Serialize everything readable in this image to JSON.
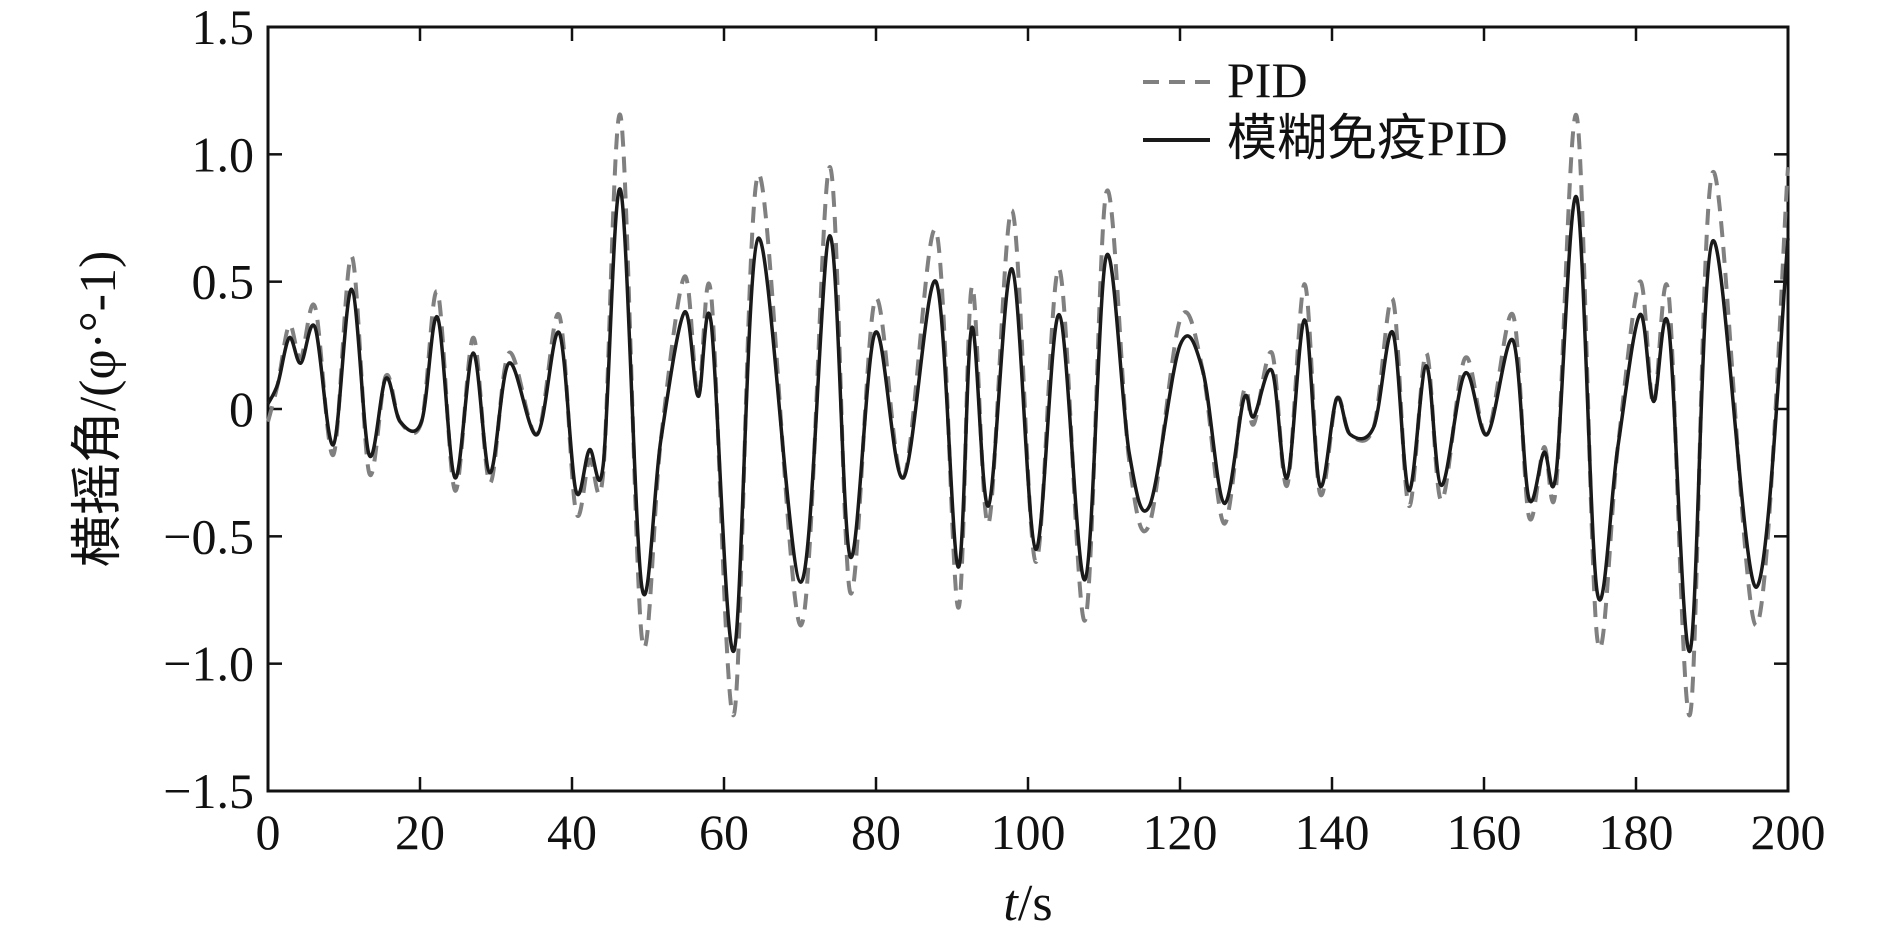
{
  "chart_data": {
    "type": "line",
    "xlabel_italic": "t",
    "xlabel_unit": "/s",
    "ylabel": "横摇角/(φ·°-1)",
    "xlim": [
      0,
      200
    ],
    "ylim": [
      -1.5,
      1.5
    ],
    "xticks": [
      "0",
      "20",
      "40",
      "60",
      "80",
      "100",
      "120",
      "140",
      "160",
      "180",
      "200"
    ],
    "yticks": [
      "1.5",
      "1.0",
      "0.5",
      "0",
      "−0.5",
      "−1.0",
      "−1.5"
    ],
    "grid": false,
    "legend_position": "top-right",
    "series": [
      {
        "name": "PID",
        "style": "dashed",
        "color": "#808080",
        "points": [
          [
            0,
            -0.05
          ],
          [
            1.3,
            0.1
          ],
          [
            2.8,
            0.33
          ],
          [
            4.3,
            0.2
          ],
          [
            6.2,
            0.4
          ],
          [
            8.6,
            -0.18
          ],
          [
            11,
            0.6
          ],
          [
            13.3,
            -0.25
          ],
          [
            15.5,
            0.13
          ],
          [
            17.4,
            -0.05
          ],
          [
            20.2,
            -0.05
          ],
          [
            22.3,
            0.46
          ],
          [
            24.6,
            -0.32
          ],
          [
            27,
            0.28
          ],
          [
            29.2,
            -0.29
          ],
          [
            31.7,
            0.22
          ],
          [
            35.4,
            -0.1
          ],
          [
            38.3,
            0.37
          ],
          [
            40.5,
            -0.4
          ],
          [
            42.3,
            -0.2
          ],
          [
            44.1,
            -0.25
          ],
          [
            46.4,
            1.15
          ],
          [
            49.2,
            -0.9
          ],
          [
            51.7,
            -0.12
          ],
          [
            54.8,
            0.52
          ],
          [
            56.6,
            0.05
          ],
          [
            58.3,
            0.45
          ],
          [
            61.3,
            -1.2
          ],
          [
            64.5,
            0.92
          ],
          [
            70.1,
            -0.85
          ],
          [
            73.9,
            0.95
          ],
          [
            76.6,
            -0.72
          ],
          [
            79.9,
            0.43
          ],
          [
            83.6,
            -0.27
          ],
          [
            87.9,
            0.7
          ],
          [
            90.8,
            -0.78
          ],
          [
            92.6,
            0.48
          ],
          [
            94.8,
            -0.45
          ],
          [
            97.9,
            0.78
          ],
          [
            101,
            -0.6
          ],
          [
            104.1,
            0.55
          ],
          [
            107.5,
            -0.83
          ],
          [
            110.3,
            0.85
          ],
          [
            113.3,
            -0.2
          ],
          [
            116,
            -0.45
          ],
          [
            120,
            0.35
          ],
          [
            123,
            0.15
          ],
          [
            125.8,
            -0.45
          ],
          [
            128.4,
            0.07
          ],
          [
            129.7,
            -0.06
          ],
          [
            132.1,
            0.22
          ],
          [
            134.1,
            -0.3
          ],
          [
            136.4,
            0.49
          ],
          [
            138.4,
            -0.33
          ],
          [
            140.6,
            0.04
          ],
          [
            142.4,
            -0.1
          ],
          [
            145.5,
            -0.07
          ],
          [
            148,
            0.43
          ],
          [
            150.1,
            -0.38
          ],
          [
            152.4,
            0.22
          ],
          [
            154.4,
            -0.36
          ],
          [
            157.5,
            0.2
          ],
          [
            160.4,
            -0.1
          ],
          [
            163.8,
            0.37
          ],
          [
            165.9,
            -0.42
          ],
          [
            167.9,
            -0.15
          ],
          [
            169.5,
            -0.3
          ],
          [
            172.2,
            1.15
          ],
          [
            174.9,
            -0.9
          ],
          [
            177.6,
            -0.15
          ],
          [
            180.5,
            0.5
          ],
          [
            182.3,
            0.02
          ],
          [
            184.3,
            0.45
          ],
          [
            187.1,
            -1.2
          ],
          [
            190.1,
            0.93
          ],
          [
            195.8,
            -0.85
          ],
          [
            200,
            0.95
          ]
        ]
      },
      {
        "name": "模糊免疫PID",
        "style": "solid",
        "color": "#1a1a1a",
        "points": [
          [
            0,
            0.02
          ],
          [
            1.3,
            0.1
          ],
          [
            2.8,
            0.28
          ],
          [
            4.3,
            0.18
          ],
          [
            6.2,
            0.32
          ],
          [
            8.6,
            -0.14
          ],
          [
            11,
            0.47
          ],
          [
            13.3,
            -0.18
          ],
          [
            15.5,
            0.12
          ],
          [
            17.4,
            -0.05
          ],
          [
            20.2,
            -0.05
          ],
          [
            22.3,
            0.36
          ],
          [
            24.6,
            -0.27
          ],
          [
            27,
            0.22
          ],
          [
            29.2,
            -0.25
          ],
          [
            31.7,
            0.18
          ],
          [
            35.4,
            -0.1
          ],
          [
            38.3,
            0.3
          ],
          [
            40.5,
            -0.32
          ],
          [
            42.3,
            -0.16
          ],
          [
            44.1,
            -0.22
          ],
          [
            46.4,
            0.86
          ],
          [
            49.2,
            -0.7
          ],
          [
            51.7,
            -0.12
          ],
          [
            54.8,
            0.38
          ],
          [
            56.6,
            0.05
          ],
          [
            58.3,
            0.34
          ],
          [
            61.3,
            -0.95
          ],
          [
            64.5,
            0.67
          ],
          [
            70.1,
            -0.68
          ],
          [
            73.9,
            0.68
          ],
          [
            76.6,
            -0.58
          ],
          [
            79.9,
            0.3
          ],
          [
            83.6,
            -0.27
          ],
          [
            87.9,
            0.5
          ],
          [
            90.8,
            -0.62
          ],
          [
            92.6,
            0.32
          ],
          [
            94.8,
            -0.38
          ],
          [
            97.9,
            0.55
          ],
          [
            101,
            -0.55
          ],
          [
            104.1,
            0.37
          ],
          [
            107.5,
            -0.67
          ],
          [
            110.3,
            0.6
          ],
          [
            113.3,
            -0.17
          ],
          [
            116,
            -0.38
          ],
          [
            120,
            0.25
          ],
          [
            123,
            0.15
          ],
          [
            125.8,
            -0.37
          ],
          [
            128.4,
            0.04
          ],
          [
            129.7,
            -0.03
          ],
          [
            132.1,
            0.15
          ],
          [
            134.1,
            -0.27
          ],
          [
            136.4,
            0.35
          ],
          [
            138.4,
            -0.3
          ],
          [
            140.6,
            0.04
          ],
          [
            142.4,
            -0.1
          ],
          [
            145.5,
            -0.07
          ],
          [
            148,
            0.3
          ],
          [
            150.1,
            -0.32
          ],
          [
            152.4,
            0.17
          ],
          [
            154.4,
            -0.3
          ],
          [
            157.5,
            0.14
          ],
          [
            160.4,
            -0.1
          ],
          [
            163.8,
            0.27
          ],
          [
            165.9,
            -0.35
          ],
          [
            167.9,
            -0.17
          ],
          [
            169.5,
            -0.25
          ],
          [
            172.2,
            0.83
          ],
          [
            174.9,
            -0.72
          ],
          [
            177.6,
            -0.15
          ],
          [
            180.5,
            0.37
          ],
          [
            182.3,
            0.03
          ],
          [
            184.3,
            0.32
          ],
          [
            187.1,
            -0.95
          ],
          [
            190.1,
            0.66
          ],
          [
            195.8,
            -0.7
          ],
          [
            200,
            0.67
          ]
        ]
      }
    ]
  }
}
